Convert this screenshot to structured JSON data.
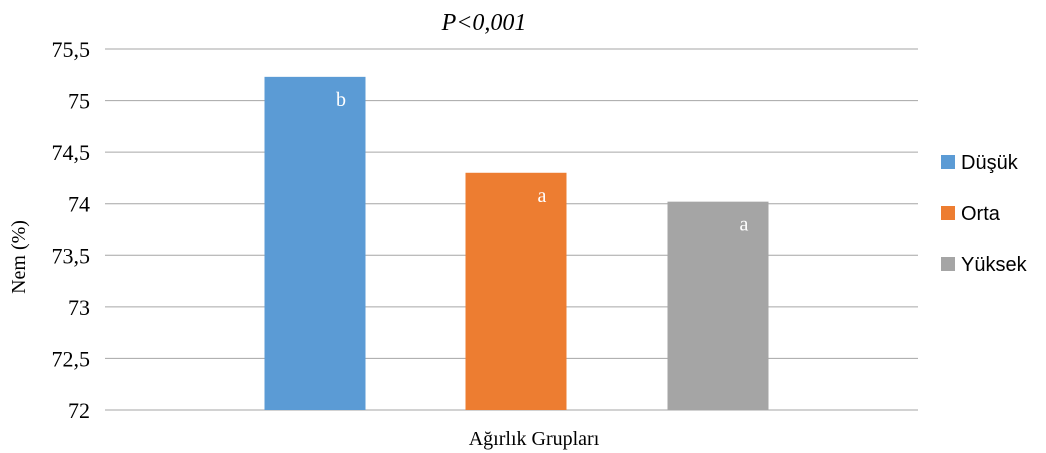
{
  "chart_data": {
    "type": "bar",
    "title": "P<0,001",
    "xlabel": "Ağırlık Grupları",
    "ylabel": "Nem (%)",
    "ylim": [
      72,
      75.5
    ],
    "yticks": [
      "72",
      "72,5",
      "73",
      "73,5",
      "74",
      "74,5",
      "75",
      "75,5"
    ],
    "grid": true,
    "legend_position": "right",
    "series": [
      {
        "name": "Düşük",
        "value": 75.23,
        "label": "b",
        "color": "#5b9bd5"
      },
      {
        "name": "Orta",
        "value": 74.3,
        "label": "a",
        "color": "#ed7d31"
      },
      {
        "name": "Yüksek",
        "value": 74.02,
        "label": "a",
        "color": "#a5a5a5"
      }
    ]
  }
}
